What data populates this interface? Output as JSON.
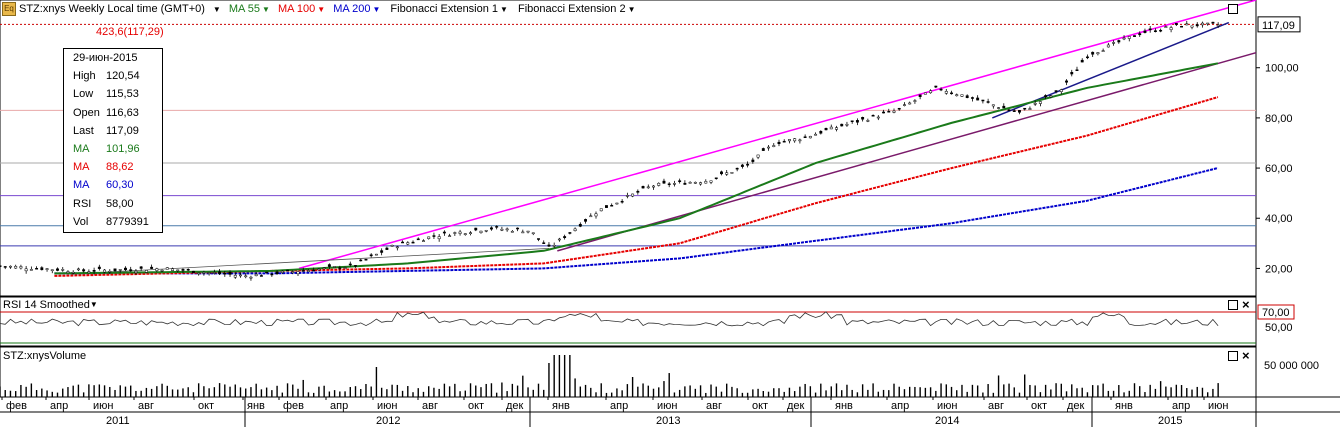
{
  "header": {
    "symbol_label": "STZ:xnys Weekly Local time (GMT+0)",
    "ma55_label": "MA 55",
    "ma100_label": "MA 100",
    "ma200_label": "MA 200",
    "fib1_label": "Fibonacci Extension 1",
    "fib2_label": "Fibonacci Extension 2",
    "colors": {
      "ma55": "#1a7a1a",
      "ma100": "#e60000",
      "ma200": "#0000cc"
    }
  },
  "fib_level_label": "423,6(117,29)",
  "infobox": {
    "date": "29-июн-2015",
    "rows": [
      {
        "k": "High",
        "v": "120,54",
        "color": "#000000"
      },
      {
        "k": "Low",
        "v": "115,53",
        "color": "#000000"
      },
      {
        "k": "Open",
        "v": "116,63",
        "color": "#000000"
      },
      {
        "k": "Last",
        "v": "117,09",
        "color": "#000000"
      },
      {
        "k": "MA",
        "v": "101,96",
        "color": "#1a7a1a"
      },
      {
        "k": "MA",
        "v": "88,62",
        "color": "#e60000"
      },
      {
        "k": "MA",
        "v": "60,30",
        "color": "#0000cc"
      },
      {
        "k": "RSI",
        "v": "58,00",
        "color": "#000000"
      },
      {
        "k": "Vol",
        "v": "8779391",
        "color": "#000000"
      }
    ]
  },
  "rsi_panel": {
    "label": "RSI 14 Smoothed",
    "level_label": "70,00",
    "tick_label": "50,00"
  },
  "volume_panel": {
    "label": "STZ:xnysVolume",
    "tick_label": "50 000 000"
  },
  "chart_data": {
    "type": "line",
    "title": "STZ:xnys Weekly",
    "price_axis_ticks": [
      "20,00",
      "40,00",
      "60,00",
      "80,00",
      "100,00"
    ],
    "last_price_label": "117,09",
    "ylim": [
      9,
      127
    ],
    "month_labels": [
      "фев",
      "апр",
      "июн",
      "авг",
      "окт",
      "янв",
      "фев",
      "апр",
      "июн",
      "авг",
      "окт",
      "дек",
      "янв",
      "апр",
      "июн",
      "авг",
      "окт",
      "дек",
      "янв",
      "апр",
      "июн",
      "авг",
      "окт",
      "дек",
      "янв",
      "апр",
      "июн"
    ],
    "year_labels": [
      "2011",
      "2012",
      "2013",
      "2014",
      "2015"
    ],
    "price_series_anchor_points": {
      "x_years": [
        2011.0,
        2011.3,
        2011.6,
        2011.9,
        2012.1,
        2012.3,
        2012.45,
        2012.6,
        2012.8,
        2012.95,
        2013.02,
        2013.2,
        2013.4,
        2013.6,
        2013.75,
        2013.85,
        2013.95,
        2014.1,
        2014.3,
        2014.45,
        2014.6,
        2014.75,
        2014.9,
        2015.0,
        2015.2,
        2015.35,
        2015.49
      ],
      "close": [
        21,
        19,
        20,
        17,
        19,
        21,
        29,
        33,
        36,
        35,
        28,
        43,
        53,
        55,
        61,
        70,
        72,
        77,
        83,
        92,
        87,
        82,
        91,
        105,
        114,
        117,
        117.09
      ]
    },
    "ma55": {
      "x_years": [
        2011.2,
        2012.0,
        2012.5,
        2013.0,
        2013.5,
        2014.0,
        2014.5,
        2015.0,
        2015.49
      ],
      "values": [
        18,
        19,
        22,
        27,
        40,
        62,
        78,
        92,
        101.96
      ]
    },
    "ma100": {
      "x_years": [
        2011.2,
        2012.0,
        2012.5,
        2013.0,
        2013.5,
        2014.0,
        2014.5,
        2015.0,
        2015.49
      ],
      "values": [
        17,
        19,
        20,
        22,
        30,
        46,
        60,
        73,
        88.62
      ]
    },
    "ma200": {
      "x_years": [
        2011.2,
        2012.0,
        2012.5,
        2013.0,
        2013.5,
        2014.0,
        2014.5,
        2015.0,
        2015.49
      ],
      "values": [
        18,
        18,
        19,
        20,
        24,
        31,
        38,
        47,
        60.3
      ]
    },
    "fib_horizontal_levels": [
      117.29,
      83,
      62,
      49,
      37,
      29
    ],
    "rsi": {
      "level": 70,
      "last": 58.0
    },
    "volume": {
      "last": 8779391
    }
  }
}
